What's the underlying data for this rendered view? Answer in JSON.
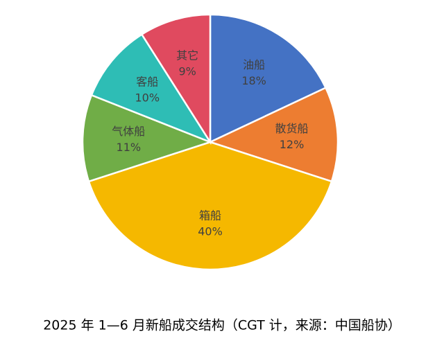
{
  "chart_data": {
    "type": "pie",
    "title": "2025 年 1—6 月新船成交结构（CGT 计，来源：中国船协）",
    "categories": [
      "油船",
      "散货船",
      "箱船",
      "气体船",
      "客船",
      "其它"
    ],
    "values": [
      18,
      12,
      40,
      11,
      10,
      9
    ],
    "value_labels": [
      "18%",
      "12%",
      "40%",
      "11%",
      "10%",
      "9%"
    ],
    "colors": [
      "#4472c4",
      "#ed7d31",
      "#f5b800",
      "#70ad47",
      "#2ebdb5",
      "#e04a5f"
    ]
  }
}
